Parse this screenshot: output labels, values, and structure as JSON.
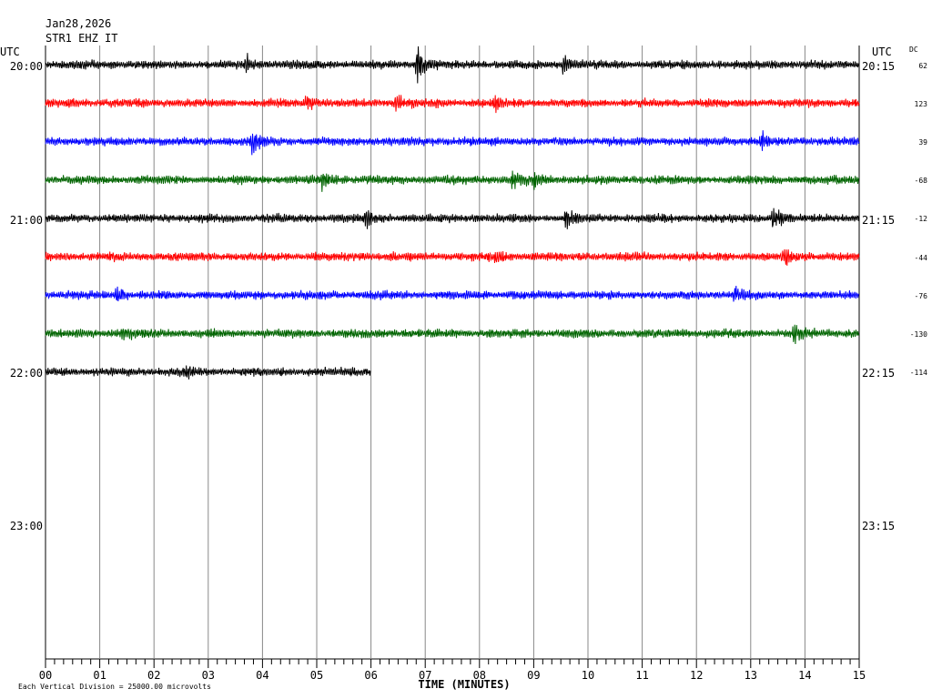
{
  "header": {
    "date": "Jan28,2026",
    "station": "STR1 EHZ IT"
  },
  "chart_data": {
    "type": "line",
    "title": "",
    "xlabel": "TIME (MINUTES)",
    "x_ticks": [
      "00",
      "01",
      "02",
      "03",
      "04",
      "05",
      "06",
      "07",
      "08",
      "09",
      "10",
      "11",
      "12",
      "13",
      "14",
      "15"
    ],
    "xlim": [
      0,
      15
    ],
    "left_axis_label": "UTC",
    "right_axis_label": "UTC",
    "dc_label": "DC",
    "hour_labels_left": [
      "20:00",
      "21:00",
      "22:00",
      "23:00"
    ],
    "hour_labels_right": [
      "20:15",
      "21:15",
      "22:15",
      "23:15"
    ],
    "footer_note": "Each Vertical Division = 25000.00 microvolts",
    "trace_colors": [
      "#000000",
      "#ff0000",
      "#0000ff",
      "#006400"
    ],
    "traces": [
      {
        "dc": "62",
        "duration_minutes": 15,
        "color": "#000000",
        "events": [
          {
            "minute": 3.7,
            "amp": 9
          },
          {
            "minute": 6.85,
            "amp": 20
          },
          {
            "minute": 9.55,
            "amp": 12
          }
        ]
      },
      {
        "dc": "123",
        "duration_minutes": 15,
        "color": "#ff0000",
        "events": [
          {
            "minute": 4.8,
            "amp": 8
          },
          {
            "minute": 6.45,
            "amp": 12
          },
          {
            "minute": 8.3,
            "amp": 6
          }
        ]
      },
      {
        "dc": "39",
        "duration_minutes": 15,
        "color": "#0000ff",
        "events": [
          {
            "minute": 3.8,
            "amp": 12
          },
          {
            "minute": 13.2,
            "amp": 8
          }
        ]
      },
      {
        "dc": "-68",
        "duration_minutes": 15,
        "color": "#006400",
        "events": [
          {
            "minute": 5.1,
            "amp": 9
          },
          {
            "minute": 8.6,
            "amp": 10
          },
          {
            "minute": 9.0,
            "amp": 8
          }
        ]
      },
      {
        "dc": "-12",
        "duration_minutes": 15,
        "color": "#000000",
        "events": [
          {
            "minute": 5.9,
            "amp": 8
          },
          {
            "minute": 9.6,
            "amp": 10
          },
          {
            "minute": 13.4,
            "amp": 14
          }
        ]
      },
      {
        "dc": "-44",
        "duration_minutes": 15,
        "color": "#ff0000",
        "events": [
          {
            "minute": 8.3,
            "amp": 6
          },
          {
            "minute": 13.6,
            "amp": 11
          }
        ]
      },
      {
        "dc": "-76",
        "duration_minutes": 15,
        "color": "#0000ff",
        "events": [
          {
            "minute": 1.3,
            "amp": 8
          },
          {
            "minute": 12.7,
            "amp": 7
          }
        ]
      },
      {
        "dc": "-130",
        "duration_minutes": 15,
        "color": "#006400",
        "events": [
          {
            "minute": 1.4,
            "amp": 7
          },
          {
            "minute": 13.8,
            "amp": 9
          }
        ]
      },
      {
        "dc": "-114",
        "duration_minutes": 6,
        "color": "#000000",
        "events": [
          {
            "minute": 2.6,
            "amp": 7
          }
        ]
      }
    ]
  }
}
